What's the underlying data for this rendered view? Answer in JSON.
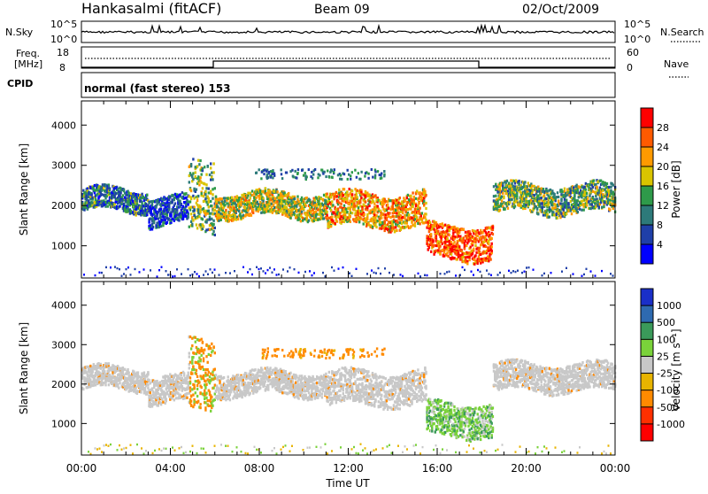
{
  "header": {
    "station": "Hankasalmi (fitACF)",
    "beam": "Beam 09",
    "date": "02/Oct/2009"
  },
  "top_panel": {
    "left_label": "N.Sky",
    "right_label": "N.Search",
    "ticks_left": [
      "10^5",
      "10^0"
    ],
    "ticks_right": [
      "10^5",
      "10^0"
    ]
  },
  "freq_panel": {
    "left_label_1": "Freq.",
    "left_label_2": "[MHz]",
    "left_ticks": [
      "18",
      "8"
    ],
    "right_label": "Nave",
    "right_ticks": [
      "60",
      "0"
    ],
    "cpid_label": "CPID",
    "cpid_text": "normal (fast stereo) 153"
  },
  "chart_data": [
    {
      "type": "heatmap",
      "name": "power",
      "ylabel": "Slant Range [km]",
      "yticks": [
        "4000",
        "3000",
        "2000",
        "1000"
      ],
      "ylim": [
        200,
        4600
      ],
      "xlim_hours": [
        0,
        24
      ],
      "colorbar_label": "Power [dB]",
      "colorbar_ticks": [
        "28",
        "24",
        "20",
        "16",
        "12",
        "8",
        "4"
      ],
      "colorbar_colors": [
        "#ff0000",
        "#ff5a00",
        "#ff9a00",
        "#d9c400",
        "#2e9a4a",
        "#2d7a7a",
        "#1f3fa8",
        "#0000ff"
      ],
      "echo_bands": [
        {
          "t0": 0,
          "t1": 3,
          "r0": 1850,
          "r1": 2400,
          "level": 2
        },
        {
          "t0": 3,
          "t1": 4.8,
          "r0": 1500,
          "r1": 2200,
          "level": 1
        },
        {
          "t0": 4.8,
          "t1": 6,
          "r0": 1300,
          "r1": 3100,
          "level": 3
        },
        {
          "t0": 6,
          "t1": 11,
          "r0": 1700,
          "r1": 2300,
          "level": 4
        },
        {
          "t0": 11,
          "t1": 15.5,
          "r0": 1450,
          "r1": 2300,
          "level": 5
        },
        {
          "t0": 15.5,
          "t1": 18.5,
          "r0": 650,
          "r1": 1500,
          "level": 6
        },
        {
          "t0": 18.5,
          "t1": 24,
          "r0": 1800,
          "r1": 2500,
          "level": 3
        }
      ]
    },
    {
      "type": "heatmap",
      "name": "velocity",
      "ylabel": "Slant Range [km]",
      "yticks": [
        "4000",
        "3000",
        "2000",
        "1000"
      ],
      "ylim": [
        200,
        4600
      ],
      "xlim_hours": [
        0,
        24
      ],
      "xticks": [
        "00:00",
        "04:00",
        "08:00",
        "12:00",
        "16:00",
        "20:00",
        "00:00"
      ],
      "xlabel": "Time UT",
      "colorbar_label": "Velocity [m s⁻¹]",
      "colorbar_ticks": [
        "1000",
        "500",
        "100",
        "25",
        "-25",
        "-100",
        "-500",
        "-1000"
      ],
      "colorbar_colors": [
        "#1a2fc8",
        "#2e6ab0",
        "#3a9a5a",
        "#7ad23a",
        "#c8c8c8",
        "#e8b400",
        "#ff8a00",
        "#ff3000",
        "#ff0000"
      ]
    }
  ]
}
